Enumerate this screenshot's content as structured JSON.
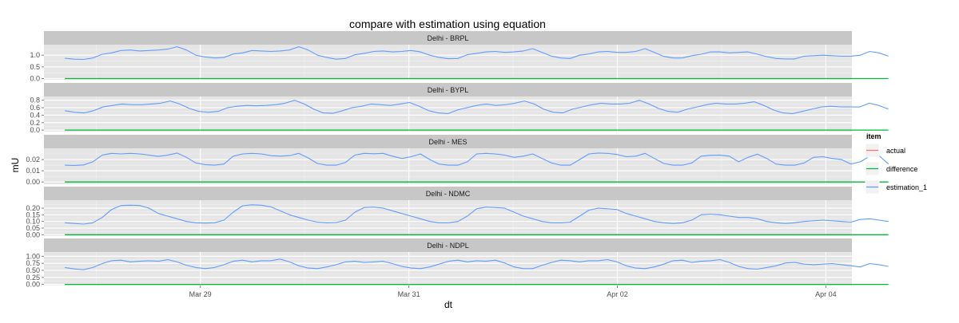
{
  "chart_data": {
    "type": "line",
    "title": "compare with estimation using equation",
    "xlabel": "dt",
    "ylabel": "mU",
    "x_range": [
      "2015-03-27T12:00",
      "2015-04-04T06:00"
    ],
    "x_ticks": [
      {
        "label": "Mar 29",
        "value": "2015-03-29T00:00"
      },
      {
        "label": "Mar 31",
        "value": "2015-03-31T00:00"
      },
      {
        "label": "Apr 02",
        "value": "2015-04-02T00:00"
      },
      {
        "label": "Apr 04",
        "value": "2015-04-04T00:00"
      }
    ],
    "grid": true,
    "legend": {
      "title": "item",
      "placement": "right",
      "entries": [
        {
          "name": "actual",
          "color": "#F8766D"
        },
        {
          "name": "difference",
          "color": "#00BA38"
        },
        {
          "name": "estimation_1",
          "color": "#619CFF"
        }
      ]
    },
    "time_span_days": [
      0,
      7.9
    ],
    "facets": [
      {
        "name": "Delhi - BRPL",
        "ylim": [
          -0.05,
          1.45
        ],
        "y_ticks": [
          "0.0",
          "0.5",
          "1.0"
        ],
        "y_tick_values": [
          0,
          0.5,
          1.0
        ],
        "series": {
          "actual": [
            0,
            0
          ],
          "difference": [
            0,
            0
          ],
          "estimation_1": [
            0.87,
            0.83,
            0.82,
            0.88,
            1.04,
            1.1,
            1.2,
            1.22,
            1.18,
            1.2,
            1.22,
            1.26,
            1.36,
            1.22,
            1.0,
            0.92,
            0.88,
            0.9,
            1.05,
            1.1,
            1.2,
            1.18,
            1.16,
            1.18,
            1.22,
            1.36,
            1.22,
            1.0,
            0.9,
            0.83,
            0.86,
            1.02,
            1.08,
            1.16,
            1.18,
            1.14,
            1.16,
            1.2,
            1.14,
            1.0,
            0.9,
            0.85,
            0.86,
            1.02,
            1.08,
            1.14,
            1.16,
            1.12,
            1.14,
            1.18,
            1.28,
            1.12,
            0.96,
            0.88,
            0.86,
            1.0,
            1.05,
            1.14,
            1.16,
            1.12,
            1.12,
            1.16,
            1.28,
            1.12,
            0.95,
            0.88,
            0.88,
            0.98,
            1.04,
            1.14,
            1.14,
            1.1,
            1.12,
            1.14,
            1.04,
            0.94,
            0.86,
            0.84,
            0.84,
            0.96,
            0.98,
            1.0,
            0.98,
            0.96,
            0.96,
            1.0,
            1.16,
            1.1,
            0.96
          ]
        }
      },
      {
        "name": "Delhi - BYPL",
        "ylim": [
          -0.04,
          0.9
        ],
        "y_ticks": [
          "0.0",
          "0.2",
          "0.4",
          "0.6",
          "0.8"
        ],
        "y_tick_values": [
          0,
          0.2,
          0.4,
          0.6,
          0.8
        ],
        "series": {
          "actual": [
            0,
            0
          ],
          "difference": [
            0,
            0
          ],
          "estimation_1": [
            0.52,
            0.48,
            0.46,
            0.52,
            0.62,
            0.66,
            0.7,
            0.68,
            0.68,
            0.7,
            0.72,
            0.78,
            0.7,
            0.58,
            0.5,
            0.48,
            0.5,
            0.6,
            0.64,
            0.66,
            0.65,
            0.66,
            0.68,
            0.72,
            0.8,
            0.7,
            0.56,
            0.46,
            0.45,
            0.52,
            0.6,
            0.64,
            0.7,
            0.68,
            0.66,
            0.7,
            0.74,
            0.64,
            0.52,
            0.46,
            0.44,
            0.54,
            0.6,
            0.66,
            0.7,
            0.66,
            0.68,
            0.72,
            0.78,
            0.7,
            0.56,
            0.48,
            0.46,
            0.56,
            0.62,
            0.68,
            0.72,
            0.7,
            0.7,
            0.72,
            0.8,
            0.7,
            0.58,
            0.5,
            0.48,
            0.56,
            0.62,
            0.68,
            0.72,
            0.7,
            0.7,
            0.72,
            0.76,
            0.66,
            0.54,
            0.46,
            0.44,
            0.5,
            0.56,
            0.62,
            0.64,
            0.62,
            0.62,
            0.62,
            0.72,
            0.66,
            0.56
          ]
        }
      },
      {
        "name": "Delhi - MES",
        "ylim": [
          -0.002,
          0.03
        ],
        "y_ticks": [
          "0.00",
          "0.01",
          "0.02"
        ],
        "y_tick_values": [
          0,
          0.01,
          0.02
        ],
        "series": {
          "actual": [
            0,
            0
          ],
          "difference": [
            0,
            0
          ],
          "estimation_1": [
            0.015,
            0.0148,
            0.0152,
            0.018,
            0.024,
            0.0255,
            0.025,
            0.0255,
            0.025,
            0.024,
            0.0228,
            0.024,
            0.0258,
            0.022,
            0.017,
            0.0155,
            0.015,
            0.016,
            0.023,
            0.025,
            0.0255,
            0.025,
            0.0235,
            0.023,
            0.0235,
            0.0255,
            0.0215,
            0.0165,
            0.015,
            0.015,
            0.0175,
            0.024,
            0.0255,
            0.0252,
            0.0255,
            0.023,
            0.021,
            0.0225,
            0.025,
            0.02,
            0.016,
            0.015,
            0.015,
            0.018,
            0.025,
            0.0255,
            0.025,
            0.024,
            0.022,
            0.023,
            0.025,
            0.021,
            0.017,
            0.015,
            0.015,
            0.02,
            0.025,
            0.0258,
            0.0255,
            0.0245,
            0.0225,
            0.023,
            0.0255,
            0.021,
            0.0165,
            0.015,
            0.015,
            0.017,
            0.023,
            0.0238,
            0.024,
            0.023,
            0.018,
            0.022,
            0.0248,
            0.021,
            0.016,
            0.015,
            0.015,
            0.017,
            0.022,
            0.0225,
            0.021,
            0.02,
            0.016,
            0.018,
            0.023,
            0.0235,
            0.016
          ]
        }
      },
      {
        "name": "Delhi - NDMC",
        "ylim": [
          -0.01,
          0.26
        ],
        "y_ticks": [
          "0.00",
          "0.05",
          "0.10",
          "0.15",
          "0.20"
        ],
        "y_tick_values": [
          0,
          0.05,
          0.1,
          0.15,
          0.2
        ],
        "series": {
          "actual": [
            0,
            0
          ],
          "difference": [
            0,
            0
          ],
          "estimation_1": [
            0.09,
            0.085,
            0.08,
            0.09,
            0.13,
            0.19,
            0.22,
            0.222,
            0.22,
            0.2,
            0.16,
            0.14,
            0.12,
            0.1,
            0.09,
            0.088,
            0.09,
            0.11,
            0.17,
            0.218,
            0.225,
            0.222,
            0.21,
            0.18,
            0.15,
            0.13,
            0.11,
            0.095,
            0.09,
            0.092,
            0.11,
            0.17,
            0.205,
            0.208,
            0.2,
            0.18,
            0.16,
            0.14,
            0.12,
            0.1,
            0.09,
            0.09,
            0.1,
            0.14,
            0.195,
            0.208,
            0.205,
            0.2,
            0.17,
            0.14,
            0.12,
            0.1,
            0.09,
            0.09,
            0.095,
            0.14,
            0.185,
            0.2,
            0.195,
            0.19,
            0.16,
            0.14,
            0.12,
            0.1,
            0.09,
            0.085,
            0.09,
            0.11,
            0.15,
            0.155,
            0.15,
            0.14,
            0.13,
            0.13,
            0.12,
            0.1,
            0.09,
            0.085,
            0.09,
            0.1,
            0.105,
            0.11,
            0.105,
            0.1,
            0.095,
            0.115,
            0.12,
            0.11,
            0.1
          ]
        }
      },
      {
        "name": "Delhi - NDPL",
        "ylim": [
          -0.04,
          1.15
        ],
        "y_ticks": [
          "0.00",
          "0.25",
          "0.50",
          "0.75",
          "1.00"
        ],
        "y_tick_values": [
          0,
          0.25,
          0.5,
          0.75,
          1.0
        ],
        "series": {
          "actual": [
            0,
            0
          ],
          "difference": [
            0,
            0
          ],
          "estimation_1": [
            0.6,
            0.55,
            0.52,
            0.6,
            0.74,
            0.84,
            0.86,
            0.8,
            0.82,
            0.84,
            0.82,
            0.88,
            0.8,
            0.68,
            0.6,
            0.56,
            0.6,
            0.7,
            0.82,
            0.86,
            0.8,
            0.84,
            0.84,
            0.9,
            0.8,
            0.66,
            0.58,
            0.56,
            0.62,
            0.7,
            0.8,
            0.82,
            0.78,
            0.8,
            0.82,
            0.74,
            0.64,
            0.58,
            0.56,
            0.62,
            0.72,
            0.82,
            0.86,
            0.8,
            0.84,
            0.82,
            0.86,
            0.76,
            0.62,
            0.56,
            0.56,
            0.68,
            0.78,
            0.86,
            0.84,
            0.8,
            0.84,
            0.84,
            0.88,
            0.8,
            0.66,
            0.58,
            0.56,
            0.62,
            0.72,
            0.84,
            0.86,
            0.78,
            0.82,
            0.84,
            0.88,
            0.78,
            0.64,
            0.56,
            0.54,
            0.6,
            0.66,
            0.76,
            0.78,
            0.72,
            0.7,
            0.72,
            0.74,
            0.7,
            0.66,
            0.62,
            0.74,
            0.7,
            0.64
          ]
        }
      }
    ]
  }
}
